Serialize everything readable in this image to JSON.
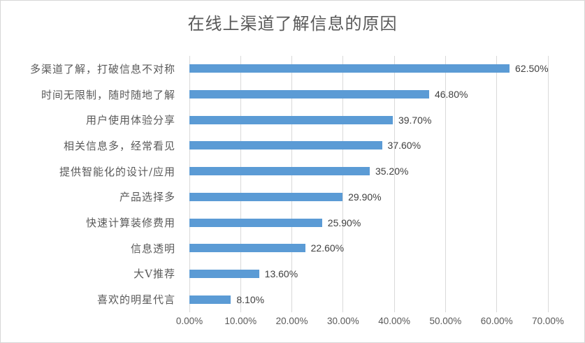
{
  "title": "在线上渠道了解信息的原因",
  "colors": {
    "bar": "#5b9bd5",
    "gridline": "#d9d9d9",
    "title_text": "#595959",
    "category_text": "#595959",
    "value_text": "#404040",
    "tick_text": "#595959",
    "border": "#d7d7d7",
    "background": "#ffffff"
  },
  "chart_data": {
    "type": "bar",
    "orientation": "horizontal",
    "title": "在线上渠道了解信息的原因",
    "categories": [
      "多渠道了解，打破信息不对称",
      "时间无限制，随时随地了解",
      "用户使用体验分享",
      "相关信息多，经常看见",
      "提供智能化的设计/应用",
      "产品选择多",
      "快速计算装修费用",
      "信息透明",
      "大V推荐",
      "喜欢的明星代言"
    ],
    "values": [
      62.5,
      46.8,
      39.7,
      37.6,
      35.2,
      29.9,
      25.9,
      22.6,
      13.6,
      8.1
    ],
    "value_labels": [
      "62.50%",
      "46.80%",
      "39.70%",
      "37.60%",
      "35.20%",
      "29.90%",
      "25.90%",
      "22.60%",
      "13.60%",
      "8.10%"
    ],
    "x_ticks": [
      "0.00%",
      "10.00%",
      "20.00%",
      "30.00%",
      "40.00%",
      "50.00%",
      "60.00%",
      "70.00%"
    ],
    "xlim": [
      0,
      70
    ],
    "grid": true,
    "legend": false,
    "xlabel": "",
    "ylabel": ""
  }
}
